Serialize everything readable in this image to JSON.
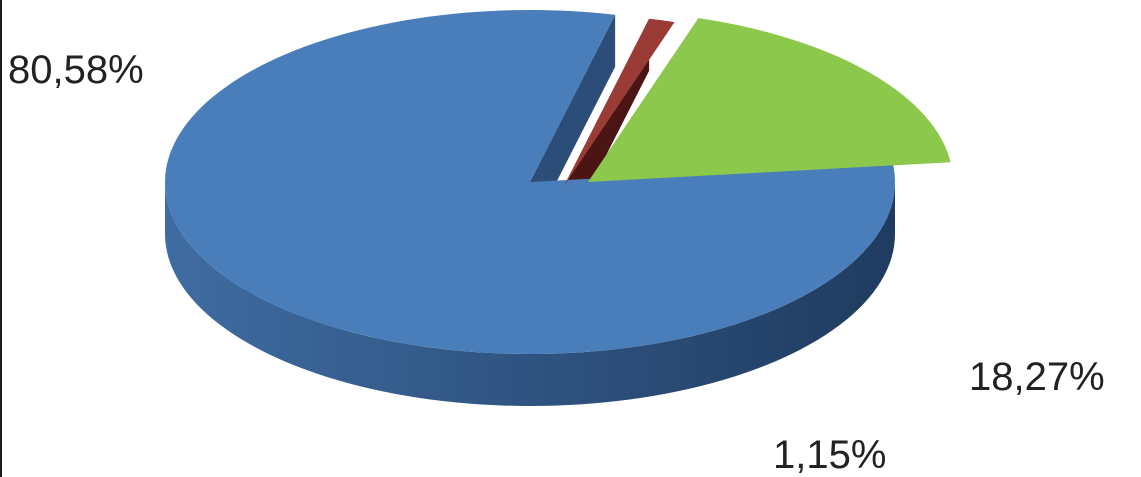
{
  "chart_data": {
    "type": "pie",
    "style": "3d-exploded",
    "title": "",
    "slices": [
      {
        "label": "80,58%",
        "value": 80.58,
        "color": "#4a7ebb"
      },
      {
        "label": "1,15%",
        "value": 1.15,
        "color": "#9a3b35"
      },
      {
        "label": "18,27%",
        "value": 18.27,
        "color": "#8cc84b"
      }
    ],
    "legend": "none"
  }
}
